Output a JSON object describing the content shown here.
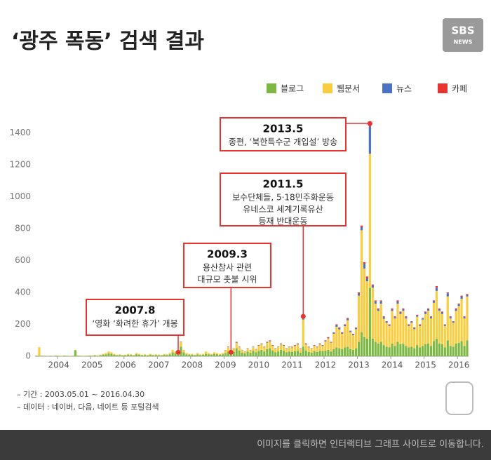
{
  "logo": [
    "SBS",
    "NEWS"
  ],
  "notes": [
    "– 기간 : 2003.05.01 ~ 2016.04.30",
    "– 데이터 : 네이버, 다음, 네이트 등 포털검색"
  ],
  "footer": "이미지를 클릭하면 인터랙티브 그래프 사이트로 이동합니다.",
  "chart_data": {
    "type": "stacked-bar",
    "title": "‘광주 폭동’ 검색 결과",
    "grid": false,
    "legend": "top-right",
    "ylim": [
      0,
      1500
    ],
    "yticks": [
      0,
      200,
      400,
      600,
      800,
      1000,
      1200,
      1400
    ],
    "categories": [
      null,
      null,
      null,
      null,
      null,
      null,
      null,
      null,
      "2004",
      null,
      null,
      null,
      null,
      null,
      null,
      null,
      null,
      null,
      null,
      null,
      "2005",
      null,
      null,
      null,
      null,
      null,
      null,
      null,
      null,
      null,
      null,
      null,
      "2006",
      null,
      null,
      null,
      null,
      null,
      null,
      null,
      null,
      null,
      null,
      null,
      "2007",
      null,
      null,
      null,
      null,
      null,
      null,
      null,
      null,
      null,
      null,
      null,
      "2008",
      null,
      null,
      null,
      null,
      null,
      null,
      null,
      null,
      null,
      null,
      null,
      "2009",
      null,
      null,
      null,
      null,
      null,
      null,
      null,
      null,
      null,
      null,
      null,
      "2010",
      null,
      null,
      null,
      null,
      null,
      null,
      null,
      null,
      null,
      null,
      null,
      "2011",
      null,
      null,
      null,
      null,
      null,
      null,
      null,
      null,
      null,
      null,
      null,
      "2012",
      null,
      null,
      null,
      null,
      null,
      null,
      null,
      null,
      null,
      null,
      null,
      "2013",
      null,
      null,
      null,
      null,
      null,
      null,
      null,
      null,
      null,
      null,
      null,
      "2014",
      null,
      null,
      null,
      null,
      null,
      null,
      null,
      null,
      null,
      null,
      null,
      "2015",
      null,
      null,
      null,
      null,
      null,
      null,
      null,
      null,
      null,
      null,
      null,
      "2016",
      null,
      null,
      null
    ],
    "series": [
      {
        "name": "블로그",
        "color": "#7cb843",
        "values": [
          3,
          2,
          3,
          2,
          1,
          2,
          1,
          3,
          2,
          1,
          3,
          2,
          1,
          2,
          38,
          3,
          2,
          1,
          2,
          3,
          3,
          5,
          3,
          6,
          9,
          12,
          18,
          15,
          9,
          6,
          7,
          5,
          6,
          9,
          7,
          5,
          12,
          9,
          6,
          7,
          5,
          9,
          6,
          7,
          6,
          5,
          9,
          7,
          12,
          24,
          18,
          15,
          60,
          24,
          12,
          9,
          9,
          6,
          12,
          7,
          9,
          15,
          12,
          9,
          15,
          12,
          9,
          12,
          20,
          30,
          15,
          28,
          50,
          35,
          22,
          18,
          30,
          22,
          35,
          25,
          35,
          40,
          30,
          45,
          50,
          35,
          25,
          30,
          40,
          35,
          25,
          30,
          28,
          32,
          36,
          22,
          60,
          36,
          27,
          22,
          32,
          27,
          36,
          32,
          35,
          40,
          30,
          45,
          55,
          50,
          45,
          55,
          60,
          45,
          40,
          50,
          90,
          150,
          120,
          110,
          430,
          110,
          90,
          80,
          90,
          70,
          60,
          55,
          80,
          65,
          90,
          75,
          80,
          65,
          55,
          60,
          50,
          70,
          55,
          65,
          75,
          80,
          65,
          95,
          110,
          80,
          75,
          55,
          100,
          65,
          60,
          80,
          85,
          95,
          65,
          100
        ]
      },
      {
        "name": "웹문서",
        "color": "#f9cd3f",
        "values": [
          2,
          55,
          2,
          1,
          1,
          1,
          1,
          2,
          1,
          1,
          2,
          1,
          1,
          1,
          2,
          2,
          1,
          1,
          1,
          2,
          2,
          3,
          2,
          4,
          6,
          8,
          12,
          10,
          6,
          4,
          5,
          3,
          4,
          6,
          5,
          3,
          8,
          6,
          4,
          5,
          3,
          6,
          4,
          5,
          4,
          3,
          6,
          5,
          8,
          16,
          12,
          10,
          30,
          16,
          8,
          6,
          6,
          4,
          8,
          5,
          6,
          15,
          8,
          6,
          10,
          8,
          6,
          8,
          18,
          27,
          9,
          20,
          35,
          22,
          16,
          10,
          17,
          16,
          22,
          18,
          31,
          35,
          26,
          40,
          44,
          31,
          22,
          27,
          35,
          31,
          22,
          27,
          28,
          33,
          38,
          25,
          170,
          38,
          29,
          25,
          34,
          29,
          38,
          33,
          58,
          72,
          55,
          96,
          130,
          118,
          96,
          134,
          165,
          106,
          92,
          120,
          290,
          640,
          430,
          360,
          840,
          320,
          240,
          205,
          240,
          165,
          150,
          135,
          205,
          172,
          240,
          190,
          205,
          172,
          135,
          150,
          120,
          178,
          135,
          165,
          190,
          205,
          172,
          240,
          300,
          205,
          190,
          135,
          275,
          172,
          150,
          205,
          230,
          265,
          172,
          275
        ]
      },
      {
        "name": "뉴스",
        "color": "#4a72c4",
        "values": [
          0,
          0,
          0,
          0,
          0,
          0,
          0,
          0,
          0,
          0,
          0,
          0,
          0,
          0,
          0,
          0,
          0,
          0,
          0,
          0,
          0,
          0,
          0,
          0,
          0,
          0,
          0,
          0,
          0,
          0,
          0,
          0,
          0,
          0,
          0,
          0,
          0,
          0,
          0,
          0,
          0,
          0,
          0,
          0,
          0,
          0,
          0,
          0,
          0,
          0,
          0,
          0,
          2,
          0,
          0,
          0,
          0,
          0,
          0,
          0,
          0,
          0,
          0,
          0,
          0,
          0,
          0,
          0,
          1,
          2,
          1,
          1,
          3,
          2,
          1,
          1,
          2,
          1,
          2,
          1,
          2,
          3,
          2,
          3,
          4,
          2,
          2,
          2,
          3,
          2,
          2,
          2,
          2,
          3,
          3,
          2,
          12,
          3,
          2,
          2,
          2,
          2,
          3,
          3,
          4,
          5,
          3,
          6,
          10,
          8,
          6,
          7,
          10,
          6,
          5,
          7,
          12,
          20,
          30,
          20,
          170,
          15,
          14,
          10,
          14,
          10,
          7,
          7,
          10,
          8,
          12,
          10,
          10,
          8,
          6,
          7,
          6,
          8,
          6,
          7,
          10,
          10,
          8,
          10,
          20,
          10,
          10,
          7,
          18,
          8,
          7,
          10,
          10,
          14,
          8,
          10
        ]
      },
      {
        "name": "카페",
        "color": "#e8332f",
        "values": [
          0,
          0,
          0,
          0,
          0,
          0,
          0,
          0,
          0,
          0,
          0,
          0,
          0,
          0,
          0,
          0,
          0,
          0,
          0,
          0,
          0,
          0,
          0,
          0,
          0,
          0,
          0,
          0,
          0,
          0,
          0,
          0,
          0,
          0,
          0,
          0,
          0,
          0,
          0,
          0,
          0,
          0,
          0,
          0,
          0,
          0,
          0,
          0,
          0,
          0,
          0,
          0,
          0,
          0,
          0,
          0,
          0,
          0,
          0,
          0,
          0,
          0,
          0,
          0,
          0,
          0,
          0,
          0,
          1,
          1,
          0,
          1,
          2,
          1,
          1,
          1,
          1,
          1,
          1,
          1,
          2,
          2,
          2,
          2,
          2,
          2,
          1,
          1,
          2,
          2,
          1,
          1,
          2,
          2,
          3,
          1,
          8,
          3,
          2,
          1,
          2,
          2,
          3,
          2,
          3,
          3,
          2,
          3,
          5,
          4,
          3,
          4,
          5,
          3,
          3,
          3,
          8,
          10,
          10,
          10,
          20,
          5,
          6,
          5,
          6,
          5,
          3,
          3,
          5,
          5,
          8,
          5,
          5,
          5,
          4,
          3,
          4,
          4,
          4,
          3,
          5,
          5,
          5,
          5,
          10,
          5,
          5,
          3,
          7,
          5,
          3,
          5,
          5,
          6,
          5,
          5
        ]
      }
    ],
    "annotations": [
      {
        "title": "2007.8",
        "lines": [
          "‘영화 ‘화려한 휴가’ 개봉"
        ]
      },
      {
        "title": "2009.3",
        "lines": [
          "용산참사 관련",
          "대규모 촛불 시위"
        ]
      },
      {
        "title": "2011.5",
        "lines": [
          "보수단체들,  5·18민주화운동",
          "유네스코 세계기록유산",
          "등재 반대운동"
        ]
      },
      {
        "title": "2013.5",
        "lines": [
          "종편, ‘북한특수군 개입설’ 방송"
        ]
      }
    ]
  }
}
